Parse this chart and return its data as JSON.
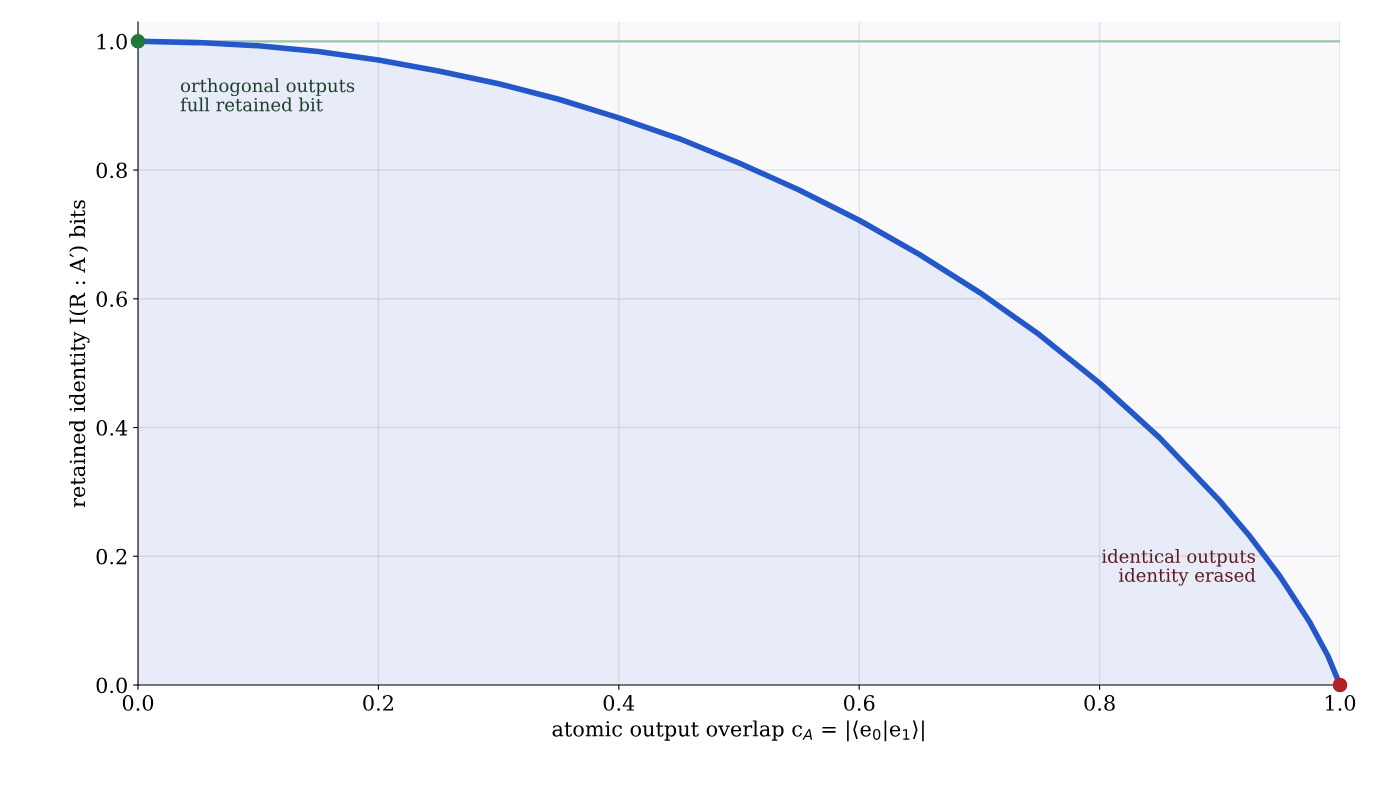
{
  "chart_data": {
    "type": "area",
    "xlabel": "atomic output overlap c$_{A}$ = |⟨e$_{0}$|e$_{1}$⟩|",
    "ylabel": "retained identity I(R : A′) bits",
    "series": [
      {
        "color": "#2458c8",
        "x": [
          0,
          0.05,
          0.1,
          0.15,
          0.2,
          0.25,
          0.3,
          0.35,
          0.4,
          0.45,
          0.5,
          0.55,
          0.6,
          0.65,
          0.7,
          0.75,
          0.8,
          0.85,
          0.9,
          0.925,
          0.95,
          0.975,
          0.99,
          1
        ],
        "values": [
          1,
          0.998,
          0.993,
          0.984,
          0.971,
          0.954,
          0.934,
          0.91,
          0.881,
          0.849,
          0.811,
          0.769,
          0.722,
          0.669,
          0.61,
          0.544,
          0.469,
          0.384,
          0.286,
          0.231,
          0.169,
          0.097,
          0.045,
          0
        ]
      },
      {
        "type": "scatter",
        "color": "#1f7a3a",
        "x": [
          0
        ],
        "values": [
          1
        ],
        "marker": "circle"
      },
      {
        "type": "scatter",
        "color": "#b22222",
        "x": [
          1
        ],
        "values": [
          0
        ],
        "marker": "circle"
      }
    ],
    "ref_lines": [
      {
        "axis": "y",
        "value": 1,
        "color": "#9cc4a8"
      }
    ],
    "annotations": [
      "orthogonal outputs\nfull retained bit",
      "identical outputs\nidentity erased"
    ],
    "xlim": [
      0,
      1
    ],
    "ylim": [
      0,
      1.03
    ],
    "xticks": [
      {
        "value": 0,
        "label": "0.0"
      },
      0.2,
      0.4,
      0.6,
      0.8,
      {
        "value": 1,
        "label": "1.0"
      }
    ],
    "yticks": [
      {
        "value": 0,
        "label": "0.0"
      },
      0.2,
      0.4,
      0.6,
      0.8,
      {
        "value": 1,
        "label": "1.0"
      }
    ],
    "grid": true
  }
}
